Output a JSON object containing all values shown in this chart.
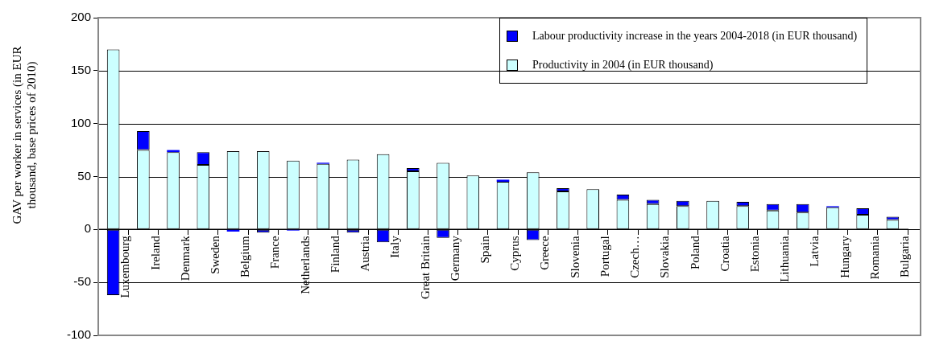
{
  "chart_data": {
    "type": "bar",
    "stacked": true,
    "ylabel": "GAV per worker in services (in EUR thousand, base prices of 2010)",
    "categories": [
      "Luxembourg",
      "Ireland",
      "Denmark",
      "Sweden",
      "Belgium",
      "France",
      "Netherlands",
      "Finland",
      "Austria",
      "Italy",
      "Great Britain",
      "Germany",
      "Spain",
      "Cyprus",
      "Greece",
      "Slovenia",
      "Portugal",
      "Czech…",
      "Slovakia",
      "Poland",
      "Croatia",
      "Estonia",
      "Lithuania",
      "Latvia",
      "Hungary",
      "Romania",
      "Bulgaria"
    ],
    "series": [
      {
        "name": "Productivity in 2004 (in EUR thousand)",
        "color": "#ccffff",
        "values": [
          170,
          75,
          73,
          61,
          74,
          74,
          65,
          62,
          66,
          71,
          55,
          63,
          51,
          45,
          54,
          36,
          38,
          28,
          24,
          22,
          27,
          22,
          18,
          16,
          21,
          14,
          9
        ]
      },
      {
        "name": "Labour productivity increase in the years 2004-2018 (in EUR thousand)",
        "color": "#0000ff",
        "values": [
          -62,
          18,
          2,
          12,
          -2,
          -3,
          -1,
          1,
          -3,
          -12,
          3,
          -8,
          0,
          2,
          -10,
          3,
          0,
          5,
          4,
          5,
          0,
          4,
          6,
          8,
          1,
          6,
          3
        ]
      }
    ],
    "ylim": [
      -100,
      200
    ],
    "yticks": [
      -100,
      -50,
      0,
      50,
      100,
      150,
      200
    ],
    "grid": "y",
    "legend": "top right"
  }
}
